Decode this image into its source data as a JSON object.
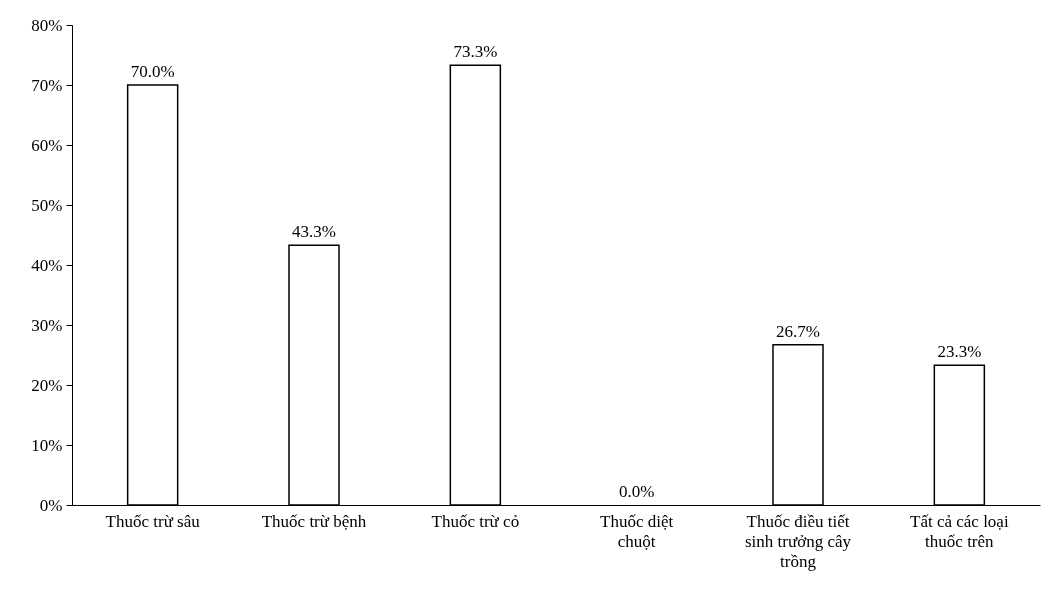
{
  "chart_data": {
    "type": "bar",
    "categories": [
      "Thuốc trừ sâu",
      "Thuốc trừ bệnh",
      "Thuốc trừ cỏ",
      "Thuốc diệt chuột",
      "Thuốc điều tiết sinh trưởng cây trồng",
      "Tất cả các loại thuốc trên"
    ],
    "values": [
      70.0,
      43.3,
      73.3,
      0.0,
      26.7,
      23.3
    ],
    "value_labels": [
      "70.0%",
      "43.3%",
      "73.3%",
      "0.0%",
      "26.7%",
      "23.3%"
    ],
    "color": "#ffffff",
    "ylim": [
      0,
      80
    ],
    "yticks": [
      {
        "value": 0,
        "label": "0%"
      },
      {
        "value": 10,
        "label": "10%"
      },
      {
        "value": 20,
        "label": "20%"
      },
      {
        "value": 30,
        "label": "30%"
      },
      {
        "value": 40,
        "label": "40%"
      },
      {
        "value": 50,
        "label": "50%"
      },
      {
        "value": 60,
        "label": "60%"
      },
      {
        "value": 70,
        "label": "70%"
      },
      {
        "value": 80,
        "label": "80%"
      }
    ],
    "grid": false
  }
}
